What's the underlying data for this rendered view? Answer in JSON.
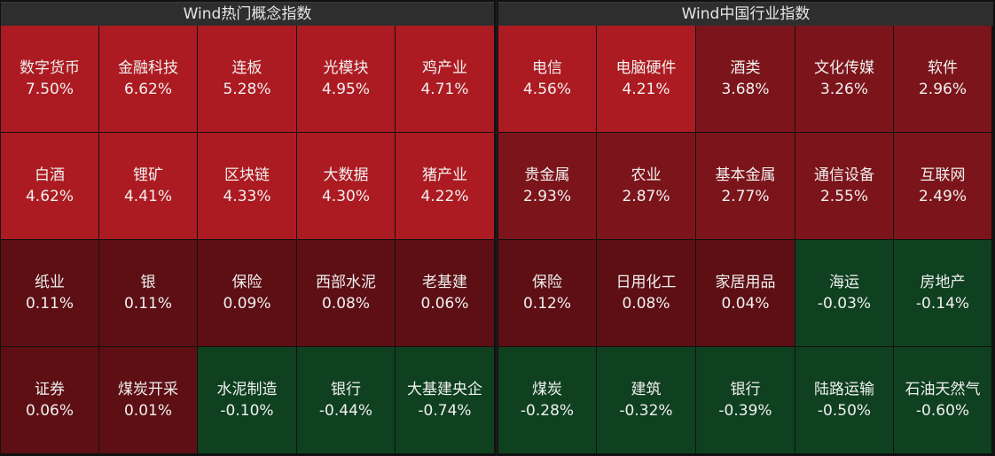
{
  "left_panel": {
    "title": "Wind热门概念指数",
    "cells": [
      {
        "name": "数字货币",
        "change": "7.50%",
        "color": "#ad1b22"
      },
      {
        "name": "金融科技",
        "change": "6.62%",
        "color": "#ad1b22"
      },
      {
        "name": "连板",
        "change": "5.28%",
        "color": "#ad1b22"
      },
      {
        "name": "光模块",
        "change": "4.95%",
        "color": "#ad1b22"
      },
      {
        "name": "鸡产业",
        "change": "4.71%",
        "color": "#ad1b22"
      },
      {
        "name": "白酒",
        "change": "4.62%",
        "color": "#ad1b22"
      },
      {
        "name": "锂矿",
        "change": "4.41%",
        "color": "#ad1b22"
      },
      {
        "name": "区块链",
        "change": "4.33%",
        "color": "#ad1b22"
      },
      {
        "name": "大数据",
        "change": "4.30%",
        "color": "#ad1b22"
      },
      {
        "name": "猪产业",
        "change": "4.22%",
        "color": "#ad1b22"
      },
      {
        "name": "纸业",
        "change": "0.11%",
        "color": "#5d0f14"
      },
      {
        "name": "银",
        "change": "0.11%",
        "color": "#5d0f14"
      },
      {
        "name": "保险",
        "change": "0.09%",
        "color": "#5d0f14"
      },
      {
        "name": "西部水泥",
        "change": "0.08%",
        "color": "#5d0f14"
      },
      {
        "name": "老基建",
        "change": "0.06%",
        "color": "#5d0f14"
      },
      {
        "name": "证券",
        "change": "0.06%",
        "color": "#5d0f14"
      },
      {
        "name": "煤炭开采",
        "change": "0.01%",
        "color": "#5d0f14"
      },
      {
        "name": "水泥制造",
        "change": "-0.10%",
        "color": "#0f4020"
      },
      {
        "name": "银行",
        "change": "-0.44%",
        "color": "#0f4020"
      },
      {
        "name": "大基建央企",
        "change": "-0.74%",
        "color": "#0f4020"
      }
    ]
  },
  "right_panel": {
    "title": "Wind中国行业指数",
    "cells": [
      {
        "name": "电信",
        "change": "4.56%",
        "color": "#ad1b22"
      },
      {
        "name": "电脑硬件",
        "change": "4.21%",
        "color": "#ad1b22"
      },
      {
        "name": "酒类",
        "change": "3.68%",
        "color": "#7c151b"
      },
      {
        "name": "文化传媒",
        "change": "3.26%",
        "color": "#7c151b"
      },
      {
        "name": "软件",
        "change": "2.96%",
        "color": "#7c151b"
      },
      {
        "name": "贵金属",
        "change": "2.93%",
        "color": "#7c151b"
      },
      {
        "name": "农业",
        "change": "2.87%",
        "color": "#7c151b"
      },
      {
        "name": "基本金属",
        "change": "2.77%",
        "color": "#7c151b"
      },
      {
        "name": "通信设备",
        "change": "2.55%",
        "color": "#7c151b"
      },
      {
        "name": "互联网",
        "change": "2.49%",
        "color": "#7c151b"
      },
      {
        "name": "保险",
        "change": "0.12%",
        "color": "#5d0f14"
      },
      {
        "name": "日用化工",
        "change": "0.08%",
        "color": "#5d0f14"
      },
      {
        "name": "家居用品",
        "change": "0.04%",
        "color": "#5d0f14"
      },
      {
        "name": "海运",
        "change": "-0.03%",
        "color": "#0f4020"
      },
      {
        "name": "房地产",
        "change": "-0.14%",
        "color": "#0f4020"
      },
      {
        "name": "煤炭",
        "change": "-0.28%",
        "color": "#0f4020"
      },
      {
        "name": "建筑",
        "change": "-0.32%",
        "color": "#0f4020"
      },
      {
        "name": "银行",
        "change": "-0.39%",
        "color": "#0f4020"
      },
      {
        "name": "陆路运输",
        "change": "-0.50%",
        "color": "#0f4020"
      },
      {
        "name": "石油天然气",
        "change": "-0.60%",
        "color": "#0f4020"
      }
    ]
  }
}
